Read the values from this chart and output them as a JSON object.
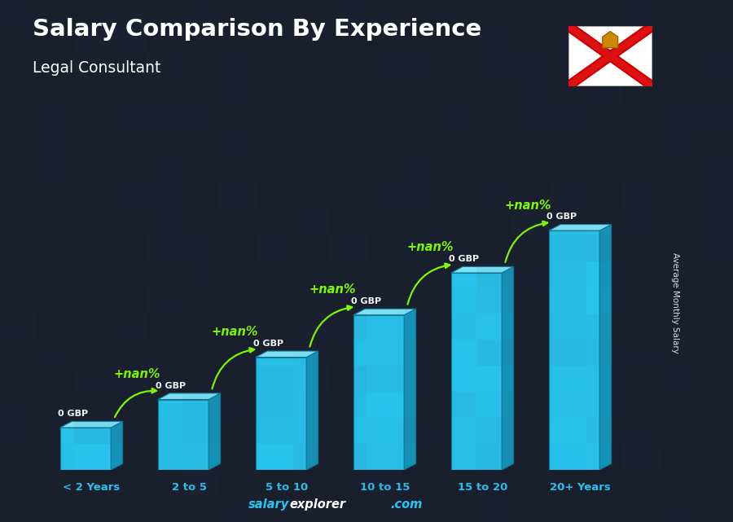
{
  "title": "Salary Comparison By Experience",
  "subtitle": "Legal Consultant",
  "categories": [
    "< 2 Years",
    "2 to 5",
    "5 to 10",
    "10 to 15",
    "15 to 20",
    "20+ Years"
  ],
  "values": [
    1.5,
    2.5,
    4.0,
    5.5,
    7.0,
    8.5
  ],
  "bar_face_color": "#29C4EE",
  "bar_top_color": "#82E4F8",
  "bar_side_color": "#1595BB",
  "bar_label": "0 GBP",
  "nan_label": "+nan%",
  "ylabel": "Average Monthly Salary",
  "nan_color": "#7FFF00",
  "tick_color": "#29C4EE",
  "title_color": "#ffffff",
  "subtitle_color": "#ffffff",
  "footer_salary_color": "#29C4EE",
  "footer_explorer_color": "#ffffff",
  "footer_com_color": "#29C4EE",
  "bg_dark": "#1a1f2e",
  "ylim_max": 11.5
}
